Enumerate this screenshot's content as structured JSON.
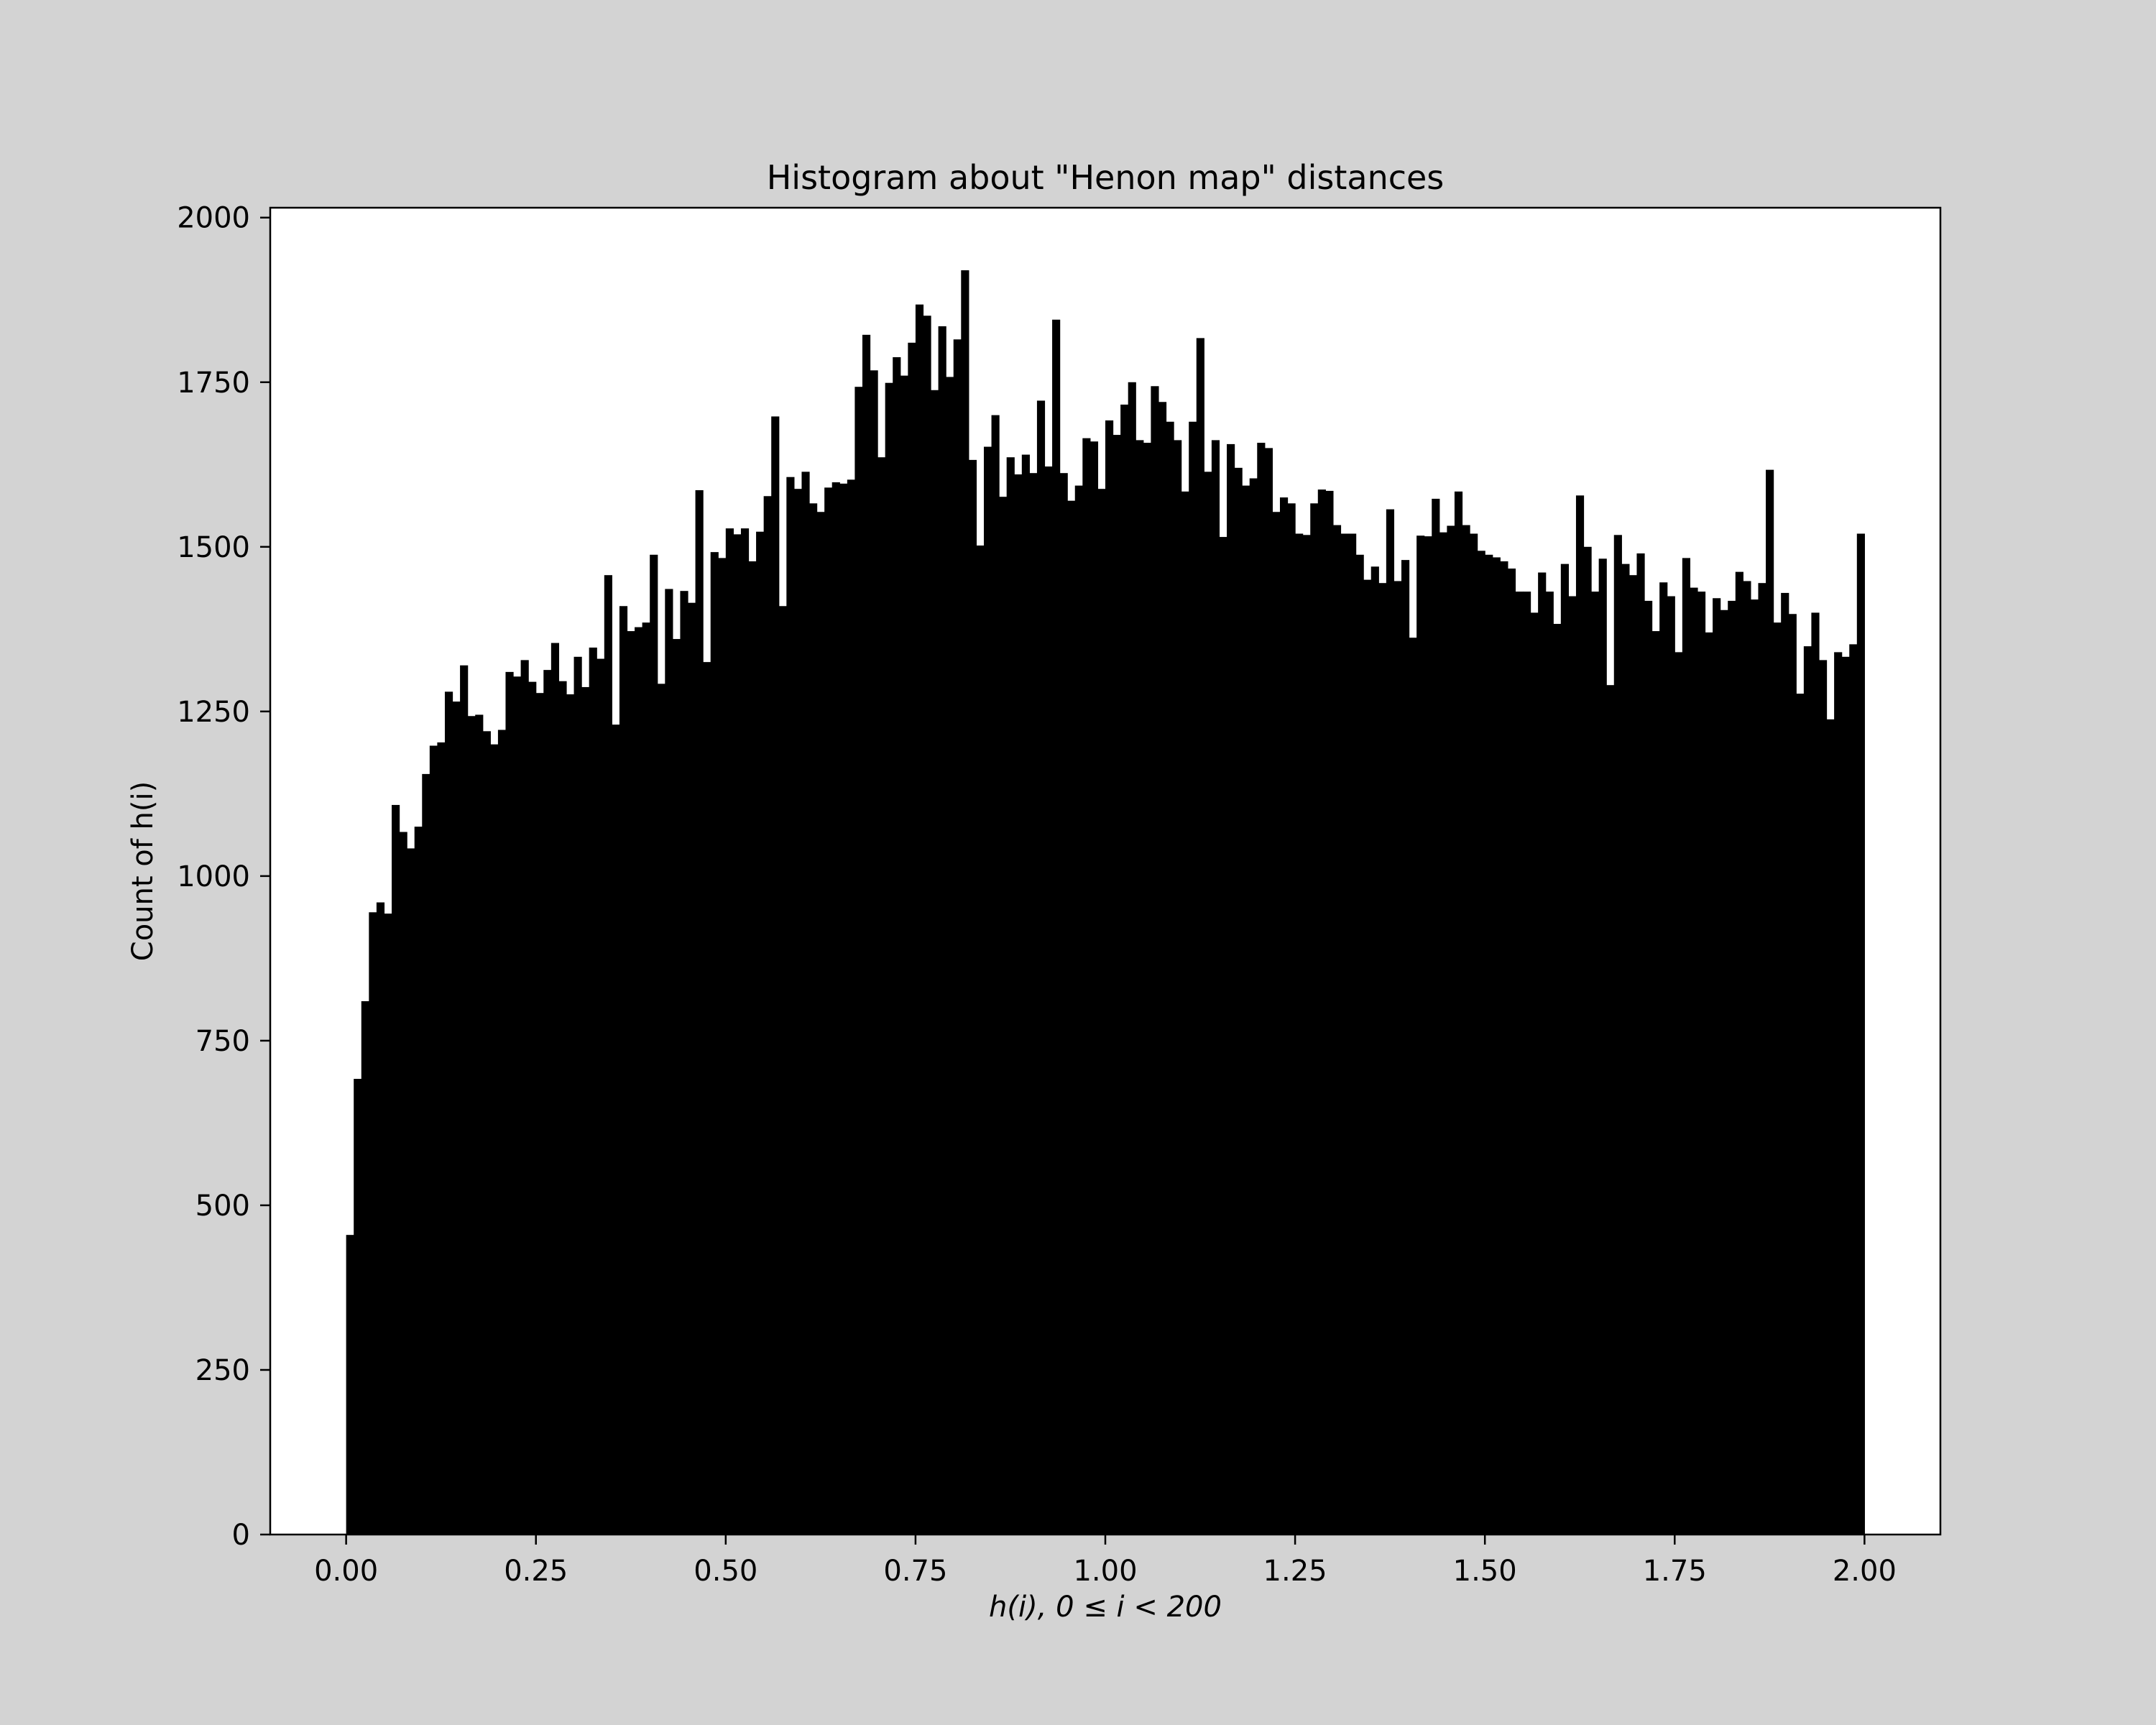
{
  "chart_data": {
    "type": "bar",
    "title": "Histogram about \"Henon map\" distances",
    "xlabel": "h(i), 0 ≤ i < 200",
    "ylabel": "Count of h(i)",
    "xlim": [
      -0.1,
      2.1
    ],
    "ylim": [
      0,
      2015
    ],
    "xticks": [
      "0.00",
      "0.25",
      "0.50",
      "0.75",
      "1.00",
      "1.25",
      "1.50",
      "1.75",
      "2.00"
    ],
    "yticks": [
      "0",
      "250",
      "500",
      "750",
      "1000",
      "1250",
      "1500",
      "1750",
      "2000"
    ],
    "bins": {
      "start": 0.0,
      "end": 2.0,
      "count": 200
    },
    "bar_color": "#000000",
    "plot_background": "#ffffff",
    "figure_background": "#d3d3d3",
    "values": [
      455,
      692,
      810,
      945,
      960,
      943,
      1108,
      1067,
      1042,
      1075,
      1155,
      1198,
      1203,
      1280,
      1265,
      1320,
      1243,
      1245,
      1220,
      1200,
      1222,
      1310,
      1303,
      1328,
      1295,
      1278,
      1313,
      1354,
      1296,
      1276,
      1333,
      1287,
      1347,
      1330,
      1457,
      1230,
      1410,
      1372,
      1378,
      1385,
      1488,
      1292,
      1436,
      1360,
      1433,
      1415,
      1586,
      1325,
      1492,
      1483,
      1528,
      1519,
      1528,
      1478,
      1523,
      1577,
      1698,
      1410,
      1606,
      1588,
      1614,
      1566,
      1553,
      1590,
      1598,
      1596,
      1602,
      1743,
      1822,
      1768,
      1636,
      1749,
      1788,
      1760,
      1810,
      1868,
      1851,
      1738,
      1835,
      1758,
      1815,
      1920,
      1632,
      1502,
      1652,
      1700,
      1576,
      1636,
      1610,
      1640,
      1612,
      1722,
      1622,
      1845,
      1612,
      1570,
      1593,
      1665,
      1660,
      1588,
      1692,
      1670,
      1716,
      1750,
      1662,
      1658,
      1744,
      1720,
      1690,
      1662,
      1584,
      1690,
      1817,
      1614,
      1662,
      1515,
      1656,
      1620,
      1593,
      1604,
      1658,
      1650,
      1553,
      1575,
      1566,
      1520,
      1518,
      1566,
      1587,
      1585,
      1533,
      1520,
      1520,
      1488,
      1450,
      1470,
      1445,
      1557,
      1448,
      1480,
      1362,
      1517,
      1516,
      1573,
      1522,
      1532,
      1584,
      1533,
      1520,
      1494,
      1488,
      1484,
      1478,
      1467,
      1432,
      1432,
      1400,
      1461,
      1432,
      1383,
      1474,
      1425,
      1578,
      1500,
      1432,
      1482,
      1290,
      1518,
      1474,
      1457,
      1490,
      1418,
      1372,
      1446,
      1425,
      1340,
      1483,
      1438,
      1432,
      1370,
      1422,
      1404,
      1418,
      1462,
      1448,
      1420,
      1445,
      1617,
      1385,
      1430,
      1398,
      1277,
      1349,
      1400,
      1328,
      1238,
      1340,
      1333,
      1352,
      1520
    ]
  }
}
